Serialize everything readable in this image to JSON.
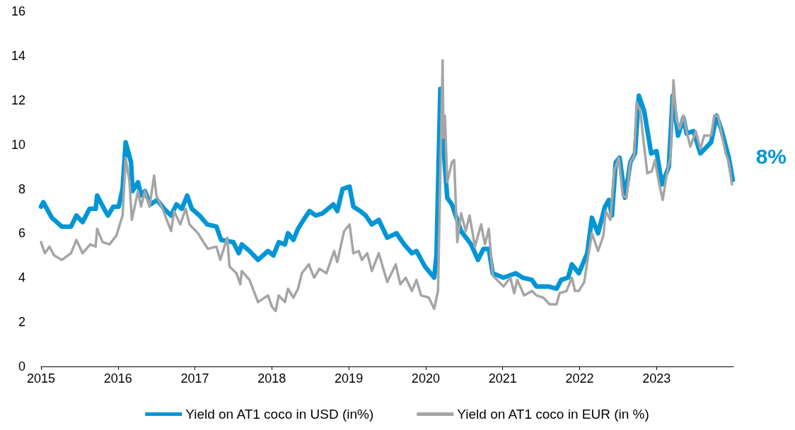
{
  "chart_data": {
    "type": "line",
    "xlim": [
      2015,
      2024
    ],
    "xticks": [
      2015,
      2016,
      2017,
      2018,
      2019,
      2020,
      2021,
      2022,
      2023
    ],
    "ylim": [
      0,
      16
    ],
    "yticks": [
      0,
      2,
      4,
      6,
      8,
      10,
      12,
      14,
      16
    ],
    "grid": false,
    "legend": "bottom",
    "marker": "none",
    "line_style": "solid",
    "annotations": [
      "8%"
    ],
    "series": [
      {
        "name": "Yield on AT1 coco in USD (in%)",
        "color": "#0096d6",
        "x": [
          2015.0,
          2015.03,
          2015.14,
          2015.27,
          2015.39,
          2015.46,
          2015.54,
          2015.63,
          2015.71,
          2015.73,
          2015.82,
          2015.87,
          2015.94,
          2016.01,
          2016.06,
          2016.1,
          2016.17,
          2016.19,
          2016.26,
          2016.3,
          2016.35,
          2016.42,
          2016.51,
          2016.6,
          2016.69,
          2016.76,
          2016.83,
          2016.9,
          2016.96,
          2017.06,
          2017.16,
          2017.28,
          2017.34,
          2017.5,
          2017.57,
          2017.61,
          2017.71,
          2017.82,
          2017.95,
          2018.02,
          2018.09,
          2018.17,
          2018.21,
          2018.28,
          2018.34,
          2018.43,
          2018.49,
          2018.57,
          2018.66,
          2018.8,
          2018.85,
          2018.92,
          2019.01,
          2019.06,
          2019.15,
          2019.22,
          2019.3,
          2019.39,
          2019.5,
          2019.62,
          2019.72,
          2019.82,
          2019.88,
          2019.99,
          2020.11,
          2020.14,
          2020.19,
          2020.22,
          2020.28,
          2020.34,
          2020.46,
          2020.59,
          2020.68,
          2020.75,
          2020.82,
          2020.87,
          2021.01,
          2021.17,
          2021.26,
          2021.38,
          2021.44,
          2021.6,
          2021.7,
          2021.76,
          2021.85,
          2021.9,
          2021.99,
          2022.1,
          2022.16,
          2022.24,
          2022.33,
          2022.38,
          2022.42,
          2022.47,
          2022.52,
          2022.59,
          2022.66,
          2022.72,
          2022.77,
          2022.84,
          2022.93,
          2023.0,
          2023.07,
          2023.16,
          2023.21,
          2023.28,
          2023.35,
          2023.39,
          2023.48,
          2023.57,
          2023.71,
          2023.78,
          2023.84,
          2023.94,
          2023.99
        ],
        "values": [
          7.2,
          7.4,
          6.7,
          6.3,
          6.3,
          6.8,
          6.5,
          7.1,
          7.1,
          7.7,
          7.1,
          6.8,
          7.2,
          7.2,
          8.0,
          10.1,
          9.2,
          7.9,
          8.3,
          7.7,
          7.9,
          7.3,
          7.5,
          7.1,
          6.8,
          7.3,
          7.1,
          7.7,
          7.1,
          6.8,
          6.4,
          6.3,
          5.7,
          5.6,
          5.1,
          5.5,
          5.2,
          4.8,
          5.2,
          5.0,
          5.6,
          5.5,
          6.0,
          5.7,
          6.2,
          6.7,
          7.0,
          6.8,
          6.9,
          7.3,
          7.0,
          8.0,
          8.1,
          7.2,
          7.0,
          6.8,
          6.4,
          6.6,
          5.8,
          6.0,
          5.5,
          5.1,
          5.2,
          4.5,
          4.0,
          5.0,
          12.5,
          10.4,
          7.6,
          7.3,
          6.1,
          5.5,
          4.8,
          5.3,
          5.3,
          4.2,
          4.0,
          4.2,
          4.0,
          3.9,
          3.6,
          3.6,
          3.5,
          3.9,
          4.0,
          4.6,
          4.2,
          5.1,
          6.7,
          6.0,
          7.2,
          7.5,
          6.8,
          9.2,
          9.4,
          7.6,
          9.2,
          9.6,
          12.2,
          11.5,
          9.6,
          9.7,
          8.2,
          9.0,
          12.2,
          10.4,
          11.2,
          10.5,
          10.6,
          9.6,
          10.1,
          11.3,
          10.7,
          9.4,
          8.4
        ]
      },
      {
        "name": "Yield on AT1 coco in EUR (in %)",
        "color": "#a5a5a5",
        "x": [
          2015.0,
          2015.05,
          2015.11,
          2015.17,
          2015.27,
          2015.39,
          2015.46,
          2015.54,
          2015.64,
          2015.71,
          2015.73,
          2015.8,
          2015.89,
          2015.98,
          2016.06,
          2016.1,
          2016.15,
          2016.18,
          2016.26,
          2016.3,
          2016.35,
          2016.41,
          2016.47,
          2016.5,
          2016.58,
          2016.69,
          2016.73,
          2016.81,
          2016.88,
          2016.93,
          2017.04,
          2017.13,
          2017.17,
          2017.28,
          2017.33,
          2017.42,
          2017.45,
          2017.54,
          2017.59,
          2017.61,
          2017.71,
          2017.82,
          2017.95,
          2018.0,
          2018.05,
          2018.09,
          2018.17,
          2018.21,
          2018.28,
          2018.34,
          2018.39,
          2018.48,
          2018.55,
          2018.62,
          2018.71,
          2018.81,
          2018.85,
          2018.94,
          2019.01,
          2019.06,
          2019.13,
          2019.17,
          2019.24,
          2019.3,
          2019.39,
          2019.5,
          2019.61,
          2019.67,
          2019.74,
          2019.82,
          2019.88,
          2019.94,
          2020.04,
          2020.11,
          2020.16,
          2020.22,
          2020.23,
          2020.25,
          2020.28,
          2020.34,
          2020.37,
          2020.41,
          2020.46,
          2020.52,
          2020.57,
          2020.64,
          2020.72,
          2020.77,
          2020.82,
          2020.87,
          2021.01,
          2021.1,
          2021.15,
          2021.19,
          2021.28,
          2021.38,
          2021.44,
          2021.53,
          2021.61,
          2021.7,
          2021.74,
          2021.83,
          2021.9,
          2021.94,
          2021.99,
          2022.06,
          2022.1,
          2022.16,
          2022.24,
          2022.31,
          2022.34,
          2022.4,
          2022.45,
          2022.51,
          2022.56,
          2022.61,
          2022.66,
          2022.71,
          2022.74,
          2022.79,
          2022.82,
          2022.88,
          2022.94,
          2022.98,
          2023.03,
          2023.08,
          2023.14,
          2023.18,
          2023.22,
          2023.26,
          2023.3,
          2023.35,
          2023.39,
          2023.44,
          2023.51,
          2023.57,
          2023.62,
          2023.71,
          2023.75,
          2023.8,
          2023.85,
          2023.9,
          2023.94,
          2023.98
        ],
        "values": [
          5.6,
          5.1,
          5.4,
          5.0,
          4.8,
          5.1,
          5.7,
          5.1,
          5.5,
          5.4,
          6.2,
          5.6,
          5.5,
          5.9,
          6.8,
          9.4,
          8.3,
          6.6,
          7.9,
          7.2,
          7.9,
          7.2,
          8.6,
          7.7,
          7.1,
          6.1,
          7.0,
          6.4,
          7.1,
          6.4,
          6.0,
          5.5,
          5.3,
          5.4,
          4.8,
          5.8,
          4.5,
          4.2,
          3.7,
          4.3,
          3.9,
          2.9,
          3.2,
          2.7,
          2.5,
          3.2,
          2.9,
          3.5,
          3.1,
          3.5,
          4.2,
          4.6,
          4.0,
          4.4,
          4.2,
          5.2,
          4.7,
          6.1,
          6.4,
          5.1,
          5.2,
          4.8,
          5.1,
          4.3,
          5.1,
          3.8,
          4.6,
          3.7,
          4.0,
          3.4,
          3.9,
          3.2,
          3.1,
          2.6,
          3.4,
          13.8,
          10.3,
          11.3,
          8.3,
          9.2,
          9.3,
          5.6,
          6.9,
          6.1,
          6.8,
          5.4,
          6.4,
          5.5,
          6.2,
          4.1,
          3.6,
          4.0,
          3.3,
          3.9,
          3.2,
          3.4,
          3.2,
          3.1,
          2.8,
          2.8,
          3.3,
          3.4,
          4.0,
          3.4,
          3.4,
          3.8,
          4.7,
          6.0,
          5.2,
          5.9,
          7.0,
          6.6,
          8.8,
          9.4,
          7.7,
          7.6,
          9.2,
          9.5,
          11.9,
          11.5,
          10.5,
          8.7,
          8.8,
          9.3,
          8.3,
          7.5,
          8.8,
          9.4,
          12.9,
          11.1,
          10.7,
          11.3,
          10.6,
          9.9,
          10.6,
          9.8,
          10.4,
          10.4,
          11.3,
          11.3,
          10.4,
          9.6,
          9.2,
          8.2
        ]
      }
    ]
  }
}
